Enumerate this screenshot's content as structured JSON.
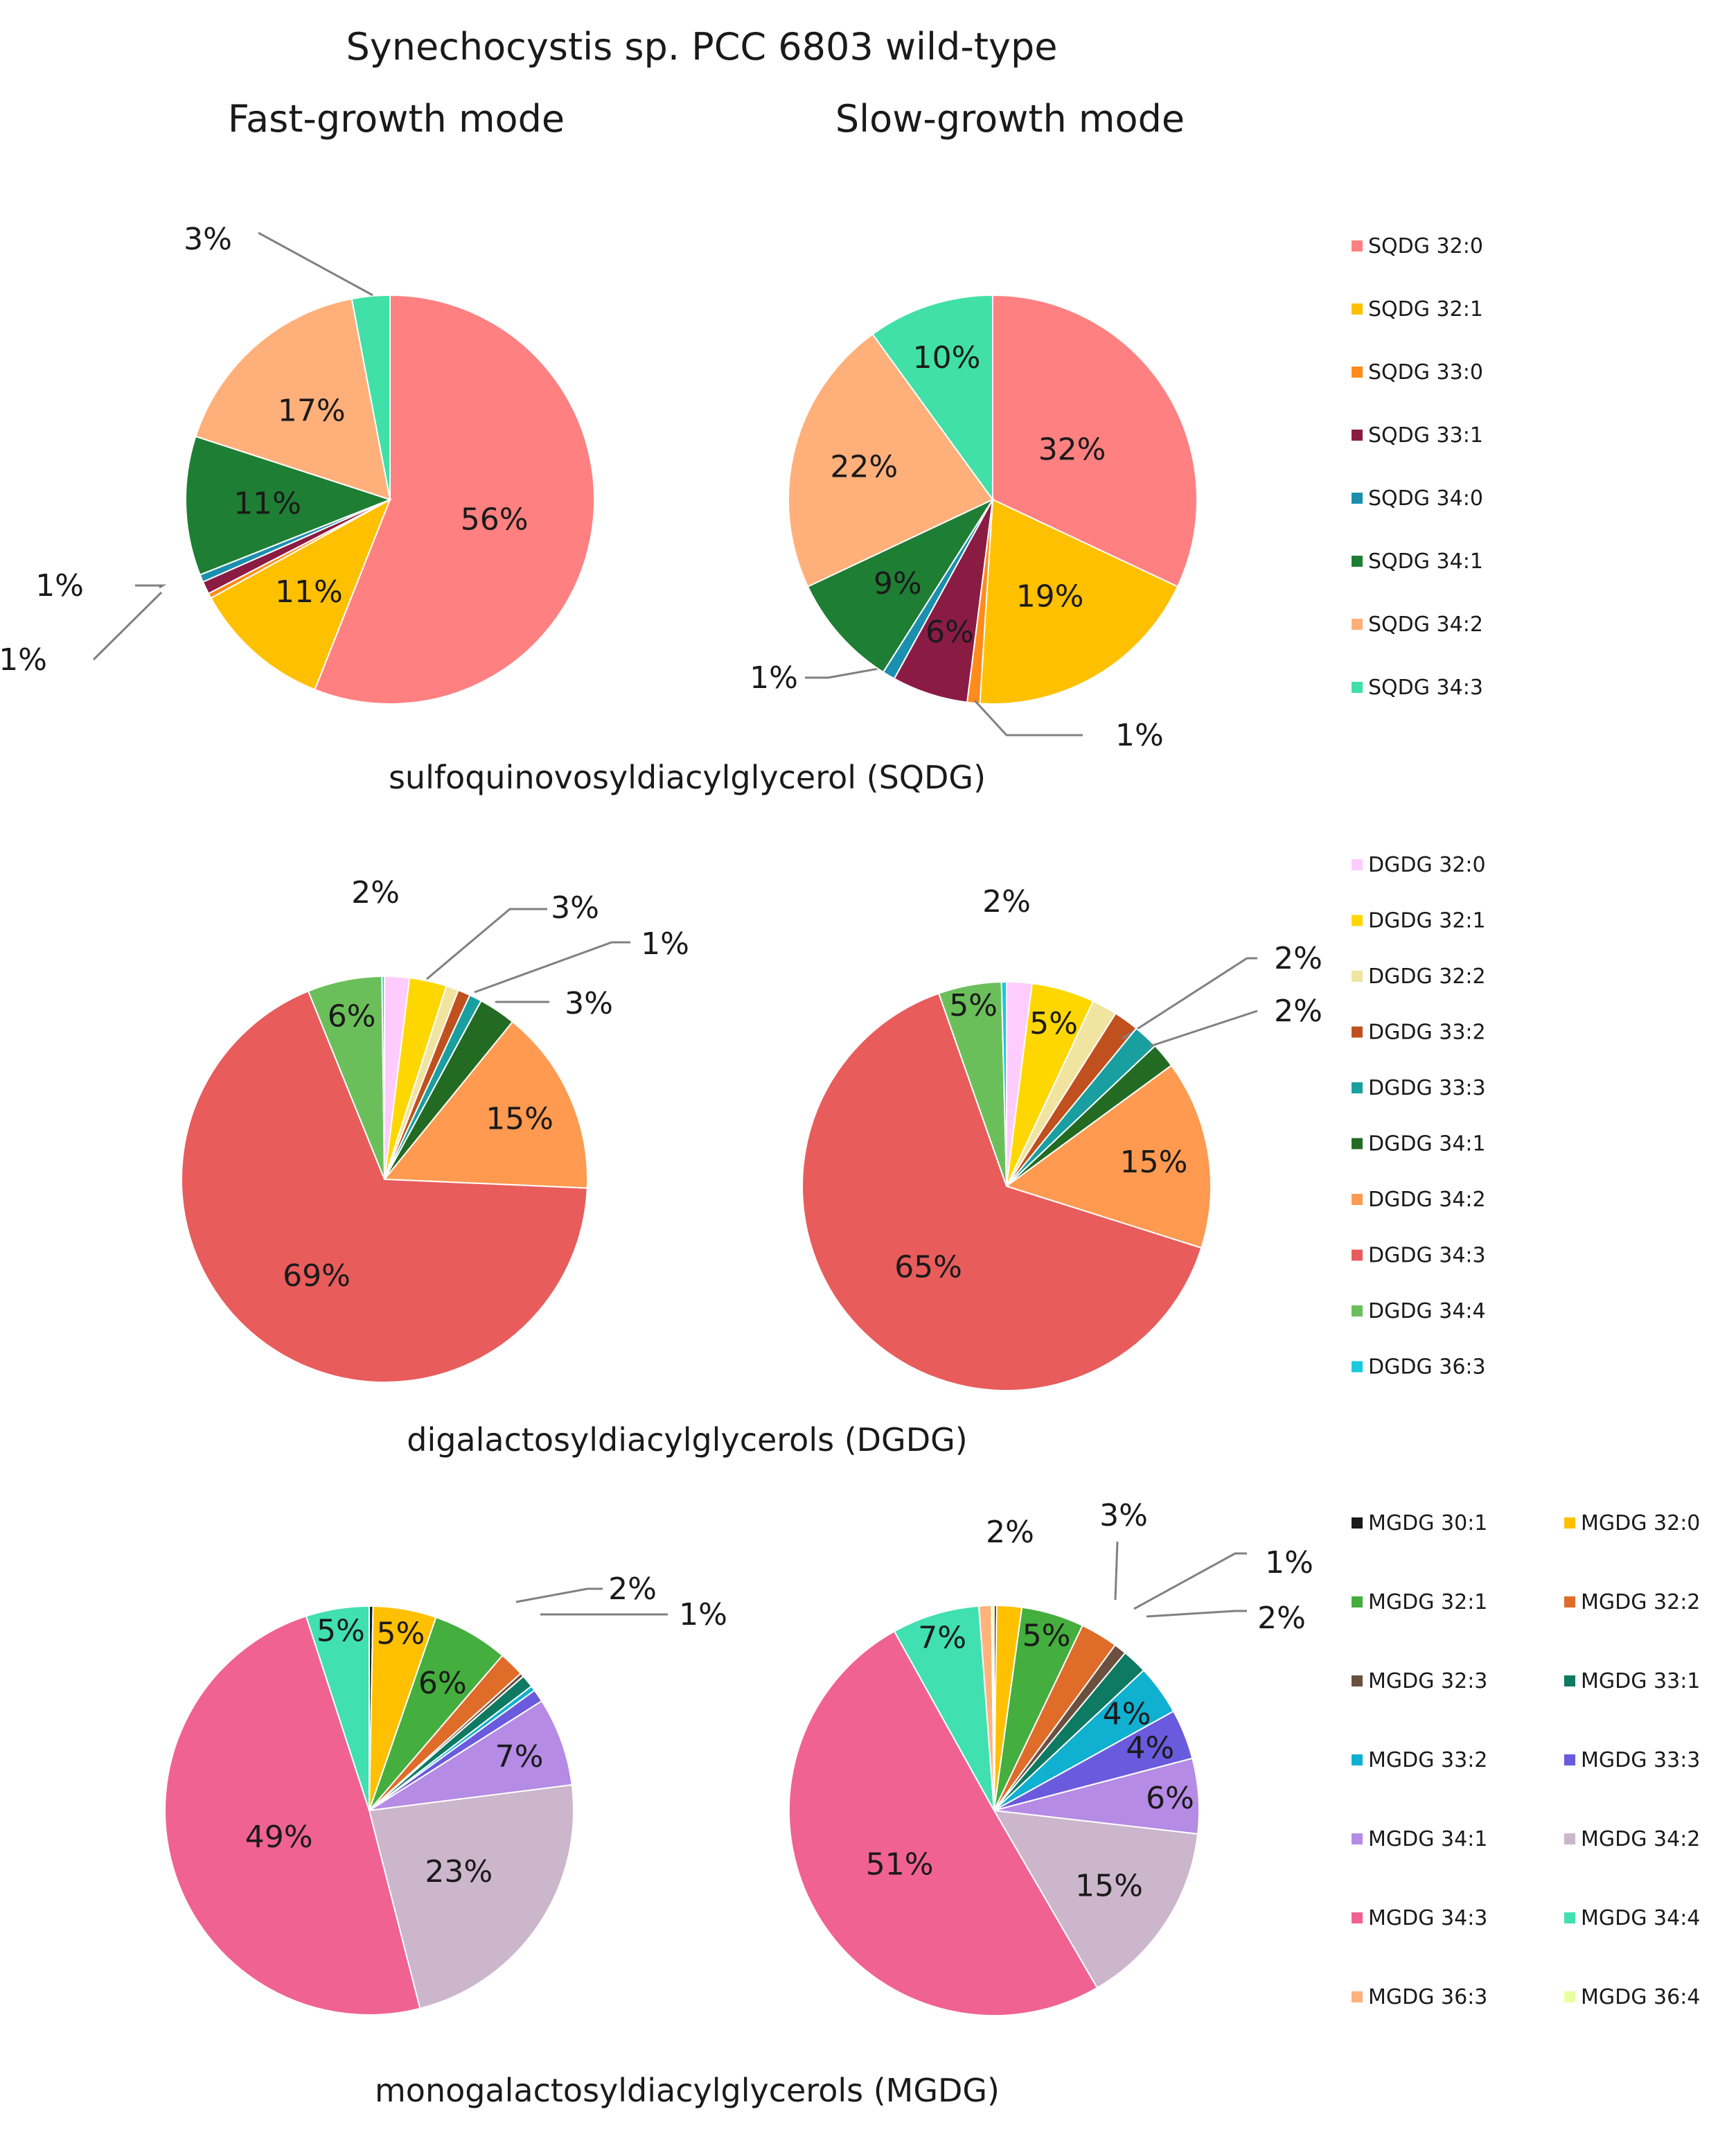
{
  "title": "Synechocystis sp. PCC 6803 wild-type",
  "mode_labels": [
    "Fast-growth mode",
    "Slow-growth mode"
  ],
  "chart_data": [
    {
      "type": "pie",
      "group": "sulfoquinovosyldiacylglycerol (SQDG)",
      "legend": [
        "SQDG 32:0",
        "SQDG 32:1",
        "SQDG 33:0",
        "SQDG 33:1",
        "SQDG 34:0",
        "SQDG 34:1",
        "SQDG 34:2",
        "SQDG 34:3"
      ],
      "colors": [
        "#FF8080",
        "#FFC000",
        "#FF8B1A",
        "#8A1C44",
        "#1A8FB0",
        "#1E7E34",
        "#FFB07A",
        "#40E0A8"
      ],
      "pies": [
        {
          "mode": "Fast-growth mode",
          "values": [
            56,
            11,
            0.4,
            1,
            0.6,
            11,
            17,
            3
          ],
          "labels": [
            "56%",
            "11%",
            "",
            "1%",
            "1%",
            "11%",
            "17%",
            "3%"
          ]
        },
        {
          "mode": "Slow-growth mode",
          "values": [
            32,
            19,
            1,
            6,
            1,
            9,
            22,
            10
          ],
          "labels": [
            "32%",
            "19%",
            "1%",
            "6%",
            "1%",
            "9%",
            "22%",
            "10%"
          ]
        }
      ]
    },
    {
      "type": "pie",
      "group": "digalactosyldiacylglycerols (DGDG)",
      "legend": [
        "DGDG 32:0",
        "DGDG 32:1",
        "DGDG 32:2",
        "DGDG 33:2",
        "DGDG 33:3",
        "DGDG 34:1",
        "DGDG 34:2",
        "DGDG 34:3",
        "DGDG 34:4",
        "DGDG 36:3"
      ],
      "colors": [
        "#FFCCFF",
        "#FFD700",
        "#F0E4A0",
        "#C0501E",
        "#1A9FA0",
        "#236B23",
        "#FF9A50",
        "#E85C5C",
        "#6BBF5A",
        "#19C9E0"
      ],
      "pies": [
        {
          "mode": "Fast-growth mode",
          "values": [
            2,
            3,
            1,
            1,
            1,
            3,
            15,
            69,
            6,
            0.2
          ],
          "labels": [
            "2%",
            "3%",
            "",
            "1%",
            "",
            "3%",
            "15%",
            "69%",
            "6%",
            ""
          ]
        },
        {
          "mode": "Slow-growth mode",
          "values": [
            2,
            5,
            2,
            2,
            2,
            2,
            15,
            65,
            5,
            0.4
          ],
          "labels": [
            "2%",
            "5%",
            "",
            "2%",
            "",
            "2%",
            "15%",
            "65%",
            "5%",
            ""
          ]
        }
      ]
    },
    {
      "type": "pie",
      "group": "monogalactosyldiacylglycerols (MGDG)",
      "legend": [
        "MGDG 30:1",
        "MGDG 32:0",
        "MGDG 32:1",
        "MGDG 32:2",
        "MGDG 32:3",
        "MGDG 33:1",
        "MGDG 33:2",
        "MGDG 33:3",
        "MGDG 34:1",
        "MGDG 34:2",
        "MGDG 34:3",
        "MGDG 34:4",
        "MGDG 36:3",
        "MGDG 36:4"
      ],
      "colors": [
        "#1A1A1A",
        "#FFC000",
        "#44AE3E",
        "#E06C2A",
        "#6B5040",
        "#0E7A62",
        "#10B0D0",
        "#6A5ADD",
        "#B58BE6",
        "#CBB6CB",
        "#F06292",
        "#40E0B0",
        "#FFB27A",
        "#E8FFA0"
      ],
      "pies": [
        {
          "mode": "Fast-growth mode",
          "values": [
            0.3,
            5,
            6,
            2,
            0.3,
            1,
            0.4,
            1,
            7,
            23,
            49,
            5,
            0,
            0
          ],
          "labels": [
            "",
            "5%",
            "6%",
            "2%",
            "",
            "",
            "",
            "1%",
            "7%",
            "23%",
            "49%",
            "5%",
            "",
            ""
          ]
        },
        {
          "mode": "Slow-growth mode",
          "values": [
            0.2,
            2,
            5,
            3,
            1,
            2,
            4,
            4,
            6,
            15,
            51,
            7,
            1,
            0.2
          ],
          "labels": [
            "",
            "2%",
            "5%",
            "3%",
            "1%",
            "2%",
            "4%",
            "4%",
            "6%",
            "15%",
            "51%",
            "7%",
            "",
            ""
          ]
        }
      ]
    }
  ]
}
